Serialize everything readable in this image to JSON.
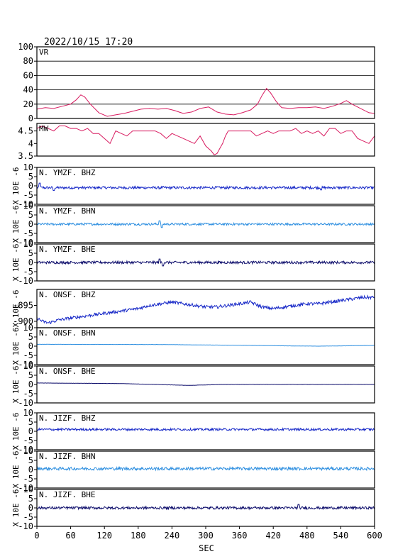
{
  "header": {
    "datetime": "2022/10/15  17:20"
  },
  "xaxis": {
    "label": "SEC",
    "range": [
      0,
      600
    ],
    "ticks": [
      0,
      60,
      120,
      180,
      240,
      300,
      360,
      420,
      480,
      540,
      600
    ]
  },
  "ylabel_text": "X 10E -6",
  "colors": {
    "vr": "#d81b60",
    "mw": "#d81b60",
    "bhz": "#1a2bc8",
    "bhn": "#2e8fe0",
    "bhe": "#0d0d6b",
    "frame": "#000000"
  },
  "chart_data": [
    {
      "type": "line",
      "label": "VR",
      "ylim": [
        0,
        100
      ],
      "yticks": [
        0,
        20,
        40,
        60,
        80,
        100
      ],
      "grid": true,
      "color": "vr",
      "x": [
        0,
        15,
        30,
        45,
        60,
        70,
        78,
        85,
        95,
        110,
        125,
        140,
        155,
        170,
        185,
        200,
        215,
        230,
        245,
        260,
        275,
        290,
        305,
        320,
        335,
        350,
        365,
        380,
        392,
        400,
        408,
        415,
        425,
        435,
        450,
        465,
        480,
        495,
        510,
        525,
        540,
        550,
        560,
        575,
        590,
        600
      ],
      "y": [
        13,
        15,
        14,
        17,
        20,
        26,
        33,
        30,
        20,
        8,
        3,
        5,
        7,
        10,
        13,
        14,
        13,
        14,
        11,
        7,
        9,
        14,
        16,
        9,
        6,
        5,
        8,
        12,
        20,
        32,
        42,
        36,
        24,
        15,
        14,
        15,
        15,
        16,
        14,
        17,
        21,
        25,
        20,
        14,
        8,
        7
      ]
    },
    {
      "type": "line",
      "label": "MW",
      "ylim": [
        3.5,
        4.8
      ],
      "yticks": [
        3.5,
        4.0,
        4.5
      ],
      "grid": false,
      "color": "mw",
      "x": [
        0,
        10,
        20,
        30,
        40,
        50,
        60,
        70,
        80,
        90,
        100,
        110,
        120,
        130,
        140,
        150,
        160,
        170,
        180,
        190,
        200,
        210,
        220,
        230,
        240,
        250,
        260,
        270,
        280,
        290,
        300,
        305,
        310,
        315,
        320,
        325,
        330,
        335,
        340,
        350,
        360,
        370,
        380,
        390,
        400,
        410,
        420,
        430,
        440,
        450,
        460,
        470,
        480,
        490,
        500,
        510,
        520,
        530,
        540,
        550,
        560,
        570,
        580,
        590,
        600
      ],
      "y": [
        4.6,
        4.7,
        4.6,
        4.5,
        4.7,
        4.7,
        4.6,
        4.6,
        4.5,
        4.6,
        4.4,
        4.4,
        4.2,
        4.0,
        4.5,
        4.4,
        4.3,
        4.5,
        4.5,
        4.5,
        4.5,
        4.5,
        4.4,
        4.2,
        4.4,
        4.3,
        4.2,
        4.1,
        4.0,
        4.3,
        3.9,
        3.8,
        3.7,
        3.55,
        3.6,
        3.8,
        4.0,
        4.3,
        4.5,
        4.5,
        4.5,
        4.5,
        4.5,
        4.3,
        4.4,
        4.5,
        4.4,
        4.5,
        4.5,
        4.5,
        4.6,
        4.4,
        4.5,
        4.4,
        4.5,
        4.3,
        4.6,
        4.6,
        4.4,
        4.5,
        4.5,
        4.2,
        4.1,
        4.0,
        4.3
      ]
    },
    {
      "type": "line",
      "label": "N. YMZF. BHZ",
      "ylim": [
        -10,
        10
      ],
      "yticks": [
        -10,
        -5,
        0,
        5,
        10
      ],
      "color": "bhz",
      "baseline": -1,
      "amplitude": 0.7,
      "spikes": [
        {
          "x": 5,
          "y": 1.5
        },
        {
          "x": 30,
          "y": -2.5
        },
        {
          "x": 505,
          "y": -2.2
        }
      ]
    },
    {
      "type": "line",
      "label": "N. YMZF. BHN",
      "ylim": [
        -10,
        10
      ],
      "yticks": [
        -10,
        -5,
        0,
        5,
        10
      ],
      "color": "bhn",
      "baseline": 0,
      "amplitude": 0.6,
      "spikes": [
        {
          "x": 218,
          "y": 1.8
        },
        {
          "x": 222,
          "y": -1.8
        }
      ]
    },
    {
      "type": "line",
      "label": "N. YMZF. BHE",
      "ylim": [
        -10,
        10
      ],
      "yticks": [
        -10,
        -5,
        0,
        5,
        10
      ],
      "color": "bhe",
      "baseline": 0,
      "amplitude": 0.7,
      "spikes": [
        {
          "x": 218,
          "y": 1.9
        },
        {
          "x": 224,
          "y": -1.9
        }
      ]
    },
    {
      "type": "line",
      "label": "N. ONSF. BHZ",
      "ylim": [
        -902,
        -890
      ],
      "yticks": [
        -900,
        -895
      ],
      "color": "bhz",
      "x": [
        0,
        10,
        20,
        30,
        40,
        60,
        80,
        100,
        120,
        140,
        160,
        180,
        200,
        220,
        240,
        260,
        280,
        300,
        320,
        340,
        360,
        380,
        400,
        420,
        440,
        460,
        480,
        500,
        520,
        540,
        560,
        580,
        600
      ],
      "y": [
        -899,
        -900,
        -900.5,
        -900,
        -899.5,
        -899,
        -898.5,
        -898,
        -897.5,
        -897,
        -896.5,
        -896,
        -895,
        -894.5,
        -894,
        -894.5,
        -895,
        -895.5,
        -895.5,
        -895,
        -894.5,
        -894,
        -895.5,
        -896,
        -895.5,
        -895,
        -894.5,
        -894.5,
        -894,
        -893.5,
        -893,
        -892.5,
        -892.5
      ],
      "noise": 0.5
    },
    {
      "type": "line",
      "label": "N. ONSF. BHN",
      "ylim": [
        -10,
        10
      ],
      "yticks": [
        -10,
        -5,
        0,
        5,
        10
      ],
      "color": "bhn",
      "x": [
        0,
        220,
        500,
        600
      ],
      "y": [
        1,
        0.9,
        0,
        0.4
      ],
      "noise": 0.05
    },
    {
      "type": "line",
      "label": "N. ONSF. BHE",
      "ylim": [
        -10,
        10
      ],
      "yticks": [
        -10,
        -5,
        0,
        5,
        10
      ],
      "color": "bhe",
      "x": [
        0,
        150,
        270,
        330,
        600
      ],
      "y": [
        0.8,
        0.5,
        -0.5,
        0,
        0
      ],
      "noise": 0.05
    },
    {
      "type": "line",
      "label": "N. JIZF. BHZ",
      "ylim": [
        -10,
        10
      ],
      "yticks": [
        -10,
        -5,
        0,
        5,
        10
      ],
      "color": "bhz",
      "baseline": 1,
      "amplitude": 0.6,
      "spikes": []
    },
    {
      "type": "line",
      "label": "N. JIZF. BHN",
      "ylim": [
        -10,
        10
      ],
      "yticks": [
        -10,
        -5,
        0,
        5,
        10
      ],
      "color": "bhn",
      "baseline": 0.5,
      "amplitude": 0.8,
      "spikes": []
    },
    {
      "type": "line",
      "label": "N. JIZF. BHE",
      "ylim": [
        -10,
        10
      ],
      "yticks": [
        -10,
        -5,
        0,
        5,
        10
      ],
      "color": "bhe",
      "baseline": 0,
      "amplitude": 0.7,
      "spikes": [
        {
          "x": 465,
          "y": 1.9
        }
      ]
    }
  ]
}
